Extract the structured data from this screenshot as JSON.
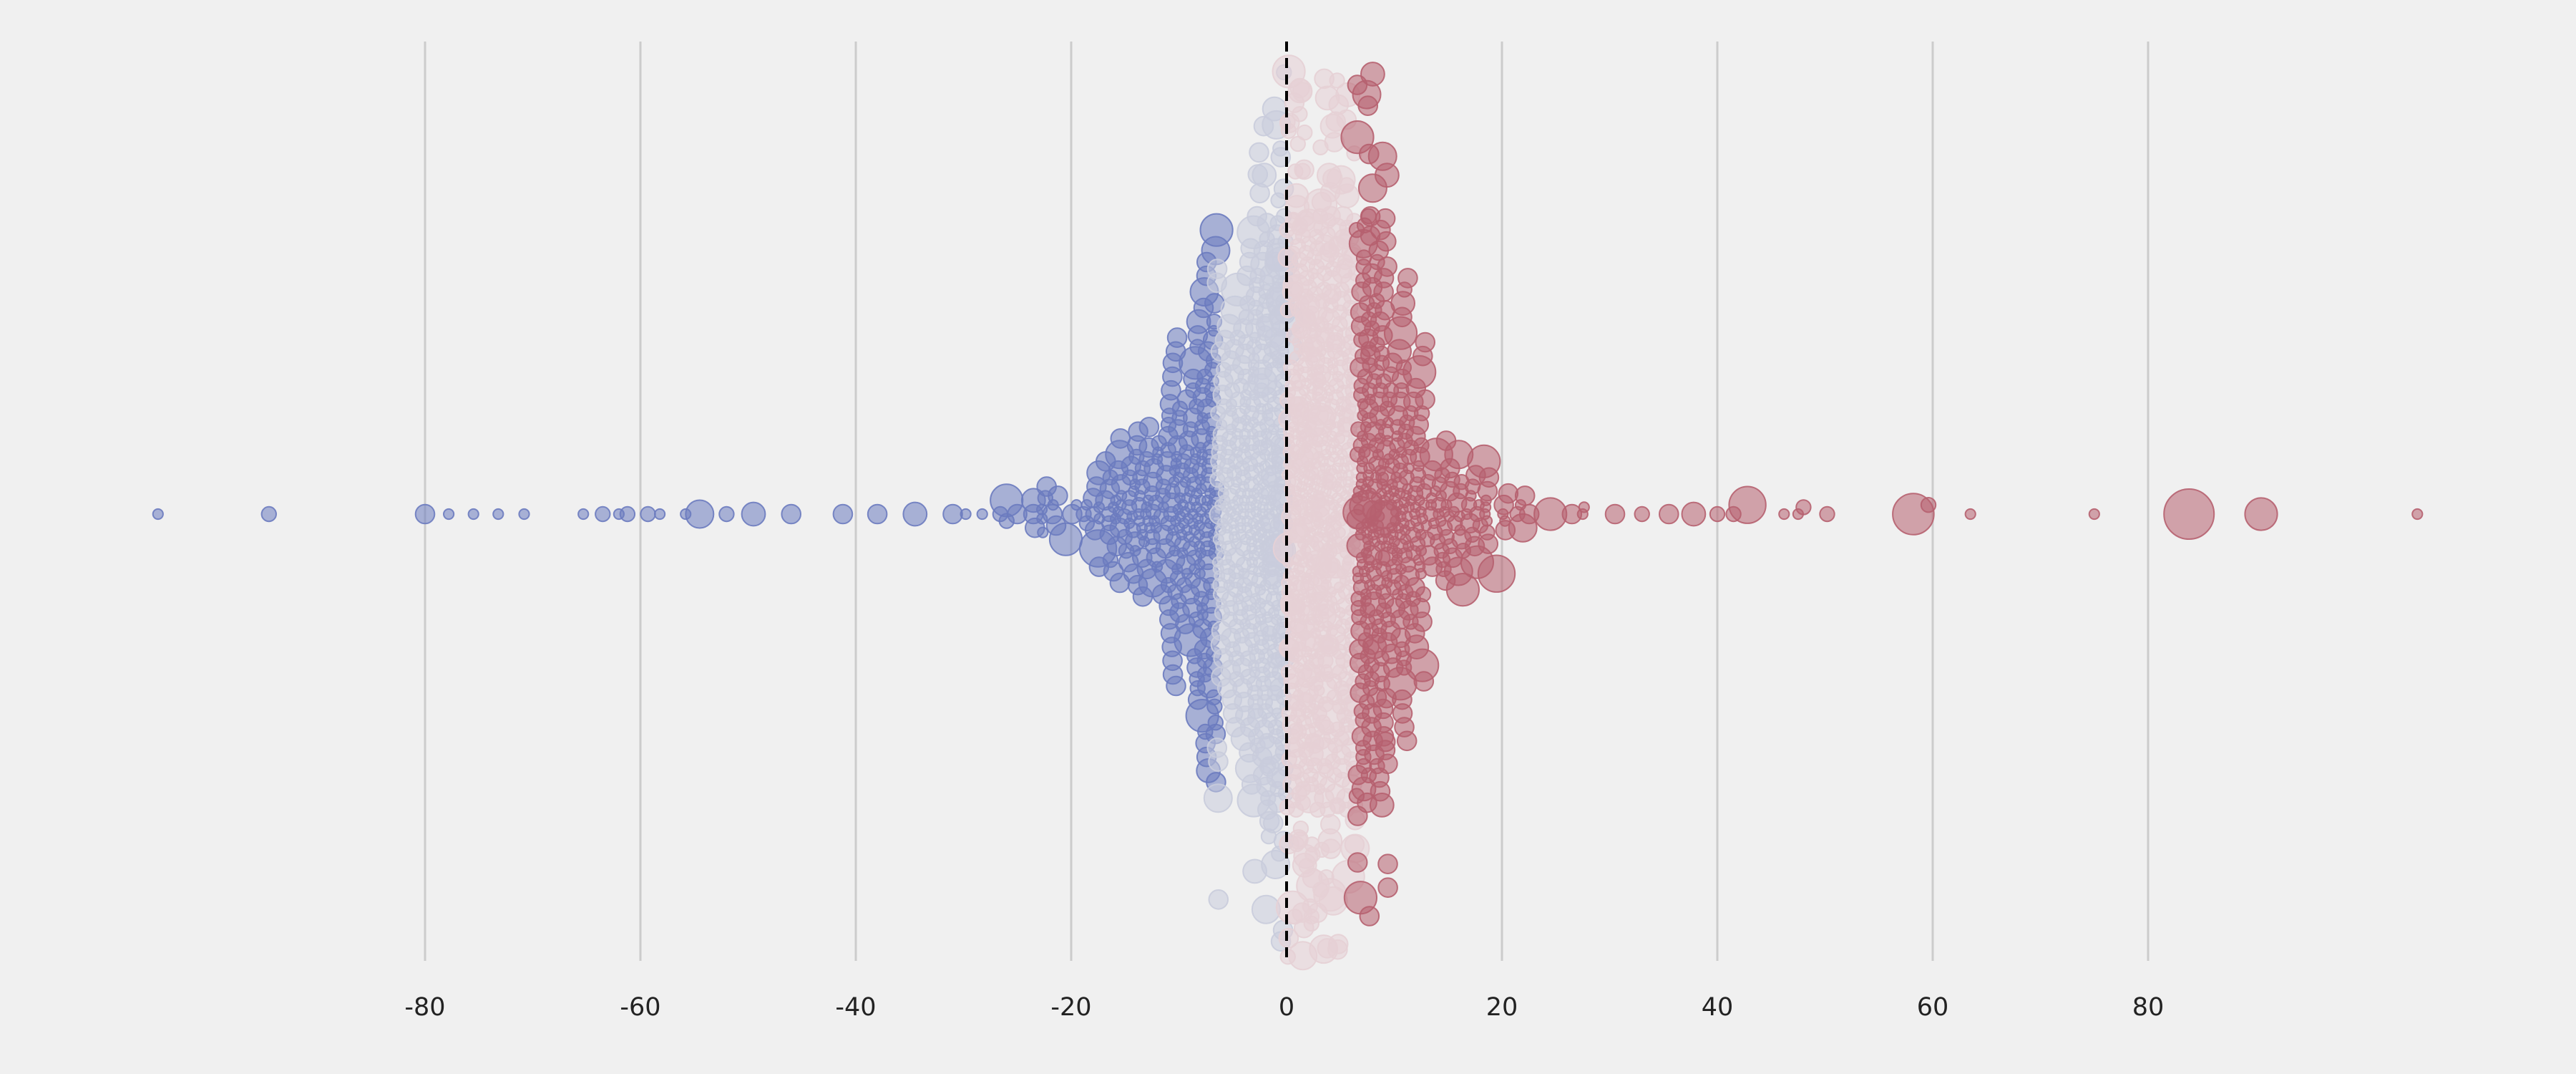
{
  "chart_data": {
    "type": "scatter",
    "style": "beeswarm",
    "title": "",
    "xlabel": "",
    "ylabel": "",
    "xlim": [
      -105,
      105
    ],
    "x_ticks": [
      -80,
      -60,
      -40,
      -20,
      0,
      20,
      40,
      60,
      80
    ],
    "x_tick_labels": [
      "-80",
      "-60",
      "-40",
      "-20",
      "0",
      "20",
      "40",
      "60",
      "80"
    ],
    "grid": "vertical lines at ticks",
    "reference_line": {
      "x": 0,
      "style": "dashed",
      "color": "#000000"
    },
    "legend": "none",
    "colors": {
      "strong_negative": "#6b7bbf",
      "mild_negative": "#c9ccdc",
      "mild_positive": "#e6d0d5",
      "strong_positive": "#b6606f",
      "grid": "#cccccc",
      "background": "#f0f0f0"
    },
    "color_thresholds": [
      -6.5,
      0,
      6.5
    ],
    "distribution_note": "dense cluster of approximately 2000 points between -20 and 20, widest near 0",
    "sample_points": [
      {
        "x": -104.8,
        "size": 1
      },
      {
        "x": -94.5,
        "size": 2
      },
      {
        "x": -80.0,
        "size": 3
      },
      {
        "x": -77.8,
        "size": 1
      },
      {
        "x": -75.5,
        "size": 1
      },
      {
        "x": -73.2,
        "size": 1
      },
      {
        "x": -70.8,
        "size": 1
      },
      {
        "x": -65.3,
        "size": 1
      },
      {
        "x": -63.5,
        "size": 2
      },
      {
        "x": -62.0,
        "size": 1
      },
      {
        "x": -61.2,
        "size": 2
      },
      {
        "x": -59.3,
        "size": 2
      },
      {
        "x": -58.2,
        "size": 1
      },
      {
        "x": -55.8,
        "size": 1
      },
      {
        "x": -54.5,
        "size": 5
      },
      {
        "x": -52.0,
        "size": 2
      },
      {
        "x": -49.5,
        "size": 4
      },
      {
        "x": -46.0,
        "size": 3
      },
      {
        "x": -41.2,
        "size": 3
      },
      {
        "x": -38.0,
        "size": 3
      },
      {
        "x": -34.5,
        "size": 4
      },
      {
        "x": -31.0,
        "size": 3
      },
      {
        "x": -26.0,
        "size": 6
      },
      {
        "x": -23.5,
        "size": 4
      },
      {
        "x": -20.5,
        "size": 6
      },
      {
        "x": -17.5,
        "size": 7
      },
      {
        "x": 16.0,
        "size": 5
      },
      {
        "x": 19.5,
        "size": 7
      },
      {
        "x": 24.5,
        "size": 6
      },
      {
        "x": 26.5,
        "size": 3
      },
      {
        "x": 30.5,
        "size": 3
      },
      {
        "x": 33.0,
        "size": 2
      },
      {
        "x": 35.5,
        "size": 3
      },
      {
        "x": 37.8,
        "size": 4
      },
      {
        "x": 40.0,
        "size": 2
      },
      {
        "x": 41.5,
        "size": 2
      },
      {
        "x": 42.8,
        "size": 7
      },
      {
        "x": 46.2,
        "size": 1
      },
      {
        "x": 47.5,
        "size": 1
      },
      {
        "x": 48.0,
        "size": 2
      },
      {
        "x": 50.2,
        "size": 2
      },
      {
        "x": 58.2,
        "size": 8
      },
      {
        "x": 59.6,
        "size": 2
      },
      {
        "x": 63.5,
        "size": 1
      },
      {
        "x": 75.0,
        "size": 1
      },
      {
        "x": 83.8,
        "size": 10
      },
      {
        "x": 90.5,
        "size": 6
      },
      {
        "x": 105.0,
        "size": 1
      }
    ]
  }
}
